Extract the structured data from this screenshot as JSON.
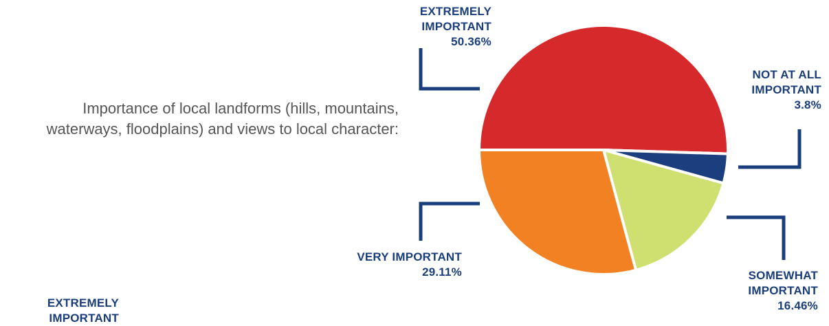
{
  "question": "Importance of local landforms (hills, mountains, waterways, floodplains) and views to local character:",
  "chart_data": {
    "type": "pie",
    "title": "",
    "slices": [
      {
        "label_lines": [
          "EXTREMELY",
          "IMPORTANT"
        ],
        "value": 50.36,
        "value_label": "50.36%",
        "color": "#d6292b"
      },
      {
        "label_lines": [
          "NOT AT ALL",
          "IMPORTANT"
        ],
        "value": 3.8,
        "value_label": "3.8%",
        "color": "#1b3e7e"
      },
      {
        "label_lines": [
          "SOMEWHAT",
          "IMPORTANT"
        ],
        "value": 16.46,
        "value_label": "16.46%",
        "color": "#cfe070"
      },
      {
        "label_lines": [
          "VERY IMPORTANT"
        ],
        "value": 29.11,
        "value_label": "29.11%",
        "color": "#f28123"
      }
    ]
  },
  "leader_color": "#1a3d7c",
  "label_color": "#1a3d7c",
  "cut_label": [
    "EXTREMELY",
    "IMPORTANT"
  ]
}
